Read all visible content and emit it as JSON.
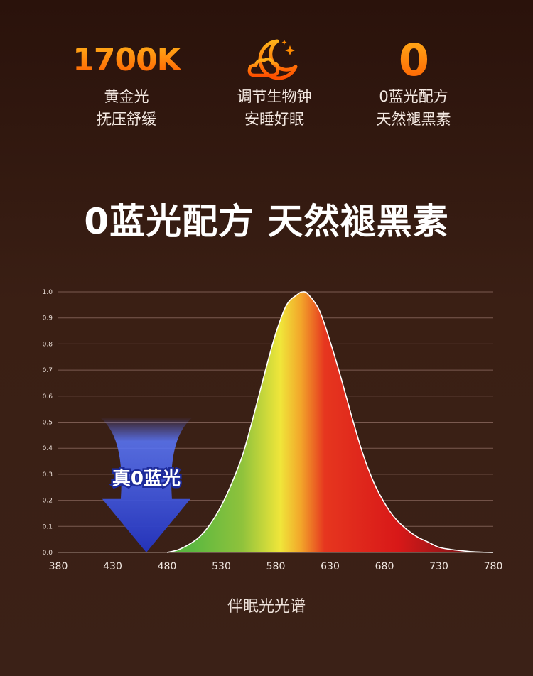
{
  "features": [
    {
      "headline": "1700K",
      "lines": [
        "黄金光",
        "抚压舒缓"
      ],
      "icon": "moon-cloud-icon"
    },
    {
      "headline": "",
      "lines": [
        "调节生物钟",
        "安睡好眠"
      ],
      "icon": "moon-cloud-icon"
    },
    {
      "headline": "0",
      "lines": [
        "0蓝光配方",
        "天然褪黑素"
      ],
      "icon": ""
    }
  ],
  "headline": "0蓝光配方  天然褪黑素",
  "colors": {
    "accent_orange": "#ff6a00",
    "blue_arrow": "#2a3fd0",
    "grid": "#7a5a50"
  },
  "chart_data": {
    "type": "area",
    "title": "",
    "xlabel": "",
    "ylabel": "",
    "caption": "伴眠光光谱",
    "xlim": [
      380,
      780
    ],
    "ylim": [
      0.0,
      1.0
    ],
    "x_ticks": [
      380,
      430,
      480,
      530,
      580,
      630,
      680,
      730,
      780
    ],
    "y_ticks": [
      "0.0",
      "0.1",
      "0.2",
      "0.3",
      "0.4",
      "0.5",
      "0.6",
      "0.7",
      "0.8",
      "0.9",
      "1.0"
    ],
    "grid": true,
    "series": [
      {
        "x": [
          480,
          490,
          500,
          510,
          520,
          530,
          540,
          550,
          560,
          570,
          580,
          590,
          600,
          605,
          610,
          620,
          630,
          640,
          650,
          660,
          670,
          680,
          690,
          700,
          710,
          720,
          730,
          740,
          750,
          760,
          770,
          780
        ],
        "y": [
          0.0,
          0.01,
          0.03,
          0.06,
          0.11,
          0.18,
          0.27,
          0.38,
          0.53,
          0.69,
          0.84,
          0.95,
          0.99,
          1.0,
          0.99,
          0.93,
          0.81,
          0.67,
          0.52,
          0.38,
          0.27,
          0.19,
          0.13,
          0.09,
          0.06,
          0.04,
          0.02,
          0.012,
          0.007,
          0.003,
          0.001,
          0.0
        ]
      }
    ],
    "annotations": [
      {
        "text": "真0蓝光",
        "x": 461
      }
    ]
  }
}
